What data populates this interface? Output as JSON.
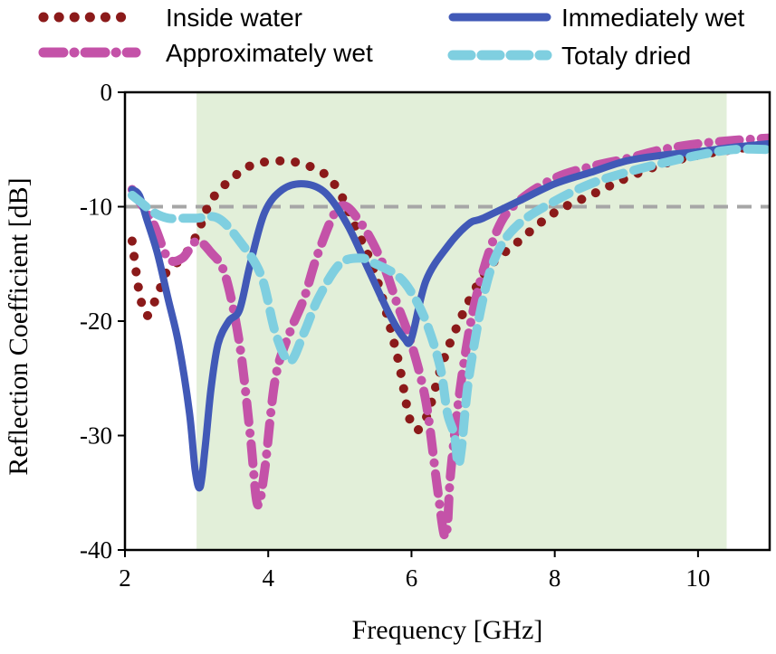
{
  "chart_data": {
    "type": "line",
    "title": "",
    "xlabel": "Frequency [GHz]",
    "ylabel": "Reflection Coefficient [dB]",
    "xlim": [
      2,
      11
    ],
    "ylim": [
      -40,
      0
    ],
    "x_ticks": [
      2,
      4,
      6,
      8,
      10
    ],
    "y_ticks": [
      0,
      -10,
      -20,
      -30,
      -40
    ],
    "x_tick_labels": [
      "2",
      "4",
      "6",
      "8",
      "10"
    ],
    "y_tick_labels": [
      "0",
      "-10",
      "-20",
      "-30",
      "-40"
    ],
    "shaded_band": {
      "x_start": 3.0,
      "x_end": 10.4,
      "color": "#e2efd9"
    },
    "reference_line": {
      "y": -10,
      "color": "#a6a6a6",
      "style": "dashed"
    },
    "legend_position": "top",
    "series": [
      {
        "name": "Inside water",
        "color": "#8b1a1a",
        "style": "dotted",
        "x": [
          2.1,
          2.2,
          2.3,
          2.4,
          2.5,
          2.6,
          2.8,
          3.0,
          3.2,
          3.5,
          3.8,
          4.2,
          4.5,
          4.8,
          5.0,
          5.2,
          5.5,
          5.8,
          6.0,
          6.2,
          6.5,
          7.0,
          7.5,
          8.0,
          8.5,
          9.0,
          9.5,
          10.0,
          10.5,
          11.0
        ],
        "y": [
          -13,
          -17.5,
          -19.5,
          -18.5,
          -17,
          -15.5,
          -14.5,
          -12.5,
          -9.5,
          -7.5,
          -6.3,
          -6.0,
          -6.3,
          -7.2,
          -8.8,
          -11.5,
          -16,
          -23,
          -29,
          -28.5,
          -22.5,
          -16,
          -13,
          -10.5,
          -9,
          -7.5,
          -6.3,
          -5.5,
          -5,
          -4.5
        ]
      },
      {
        "name": "Immediately wet",
        "color": "#4159b7",
        "style": "solid",
        "x": [
          2.1,
          2.2,
          2.3,
          2.45,
          2.6,
          2.75,
          2.9,
          2.98,
          3.05,
          3.12,
          3.2,
          3.3,
          3.45,
          3.6,
          3.75,
          3.95,
          4.2,
          4.5,
          4.8,
          5.1,
          5.4,
          5.7,
          5.9,
          6.0,
          6.2,
          6.5,
          6.8,
          7.0,
          7.5,
          8.0,
          8.5,
          9.0,
          9.5,
          10.0,
          10.5,
          11.0
        ],
        "y": [
          -8.5,
          -9,
          -11,
          -14,
          -18,
          -22,
          -28,
          -33,
          -34.5,
          -31,
          -26,
          -22,
          -20,
          -19,
          -15,
          -10.5,
          -8.5,
          -8,
          -8.8,
          -11.5,
          -15.5,
          -19.5,
          -21.5,
          -21.5,
          -16.5,
          -13.5,
          -11.5,
          -11,
          -9.5,
          -8,
          -7,
          -6,
          -5.5,
          -5.2,
          -4.8,
          -4.5
        ]
      },
      {
        "name": "Approximately wet",
        "color": "#c452a8",
        "style": "dash-dot",
        "x": [
          2.1,
          2.2,
          2.4,
          2.6,
          2.8,
          3.0,
          3.2,
          3.4,
          3.6,
          3.75,
          3.85,
          3.95,
          4.1,
          4.3,
          4.5,
          4.7,
          5.0,
          5.3,
          5.6,
          5.8,
          6.0,
          6.2,
          6.35,
          6.45,
          6.5,
          6.55,
          6.7,
          6.9,
          7.2,
          7.5,
          8.0,
          8.5,
          9.0,
          9.5,
          10.0,
          10.5,
          11.0
        ],
        "y": [
          -8.5,
          -9.5,
          -11.5,
          -14.5,
          -14.5,
          -13,
          -14,
          -16,
          -22,
          -30,
          -36,
          -33,
          -25,
          -21,
          -18,
          -14,
          -10,
          -11.5,
          -15,
          -18.5,
          -22,
          -27,
          -34,
          -38.5,
          -38,
          -33,
          -25,
          -18,
          -12,
          -9.5,
          -7.5,
          -6.5,
          -5.8,
          -5,
          -4.5,
          -4.2,
          -4
        ]
      },
      {
        "name": "Totaly dried",
        "color": "#7fcfe0",
        "style": "dashed",
        "x": [
          2.1,
          2.2,
          2.4,
          2.6,
          2.8,
          3.0,
          3.3,
          3.6,
          3.9,
          4.1,
          4.3,
          4.5,
          4.7,
          5.0,
          5.3,
          5.5,
          5.8,
          6.0,
          6.2,
          6.4,
          6.5,
          6.6,
          6.65,
          6.7,
          6.8,
          7.0,
          7.2,
          7.5,
          8.0,
          8.5,
          9.0,
          9.5,
          10.0,
          10.5,
          11.0
        ],
        "y": [
          -9,
          -9.5,
          -10.5,
          -11,
          -11,
          -11,
          -11,
          -13,
          -16,
          -21,
          -23.5,
          -21,
          -18,
          -15,
          -14.5,
          -15,
          -16,
          -17.5,
          -20,
          -24,
          -28,
          -30,
          -32.5,
          -31,
          -25,
          -18,
          -14,
          -11.5,
          -9.5,
          -8,
          -7,
          -6.2,
          -5.5,
          -5,
          -5
        ]
      }
    ]
  }
}
